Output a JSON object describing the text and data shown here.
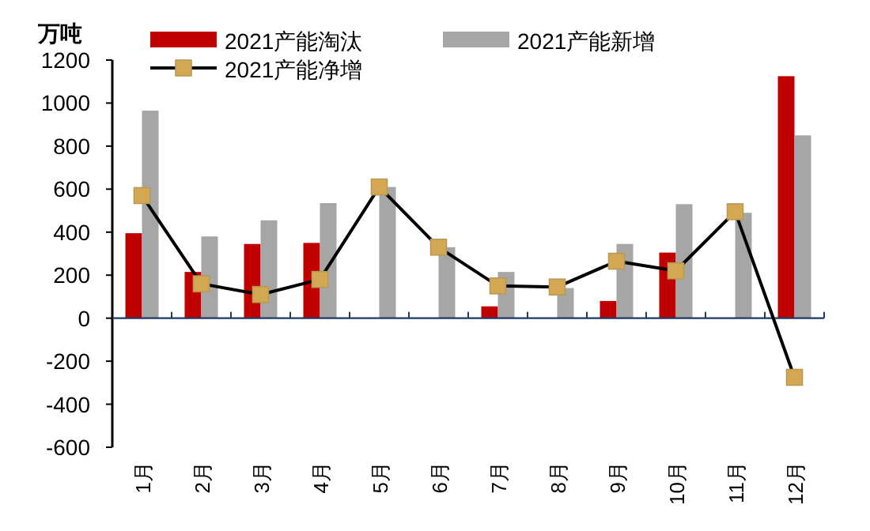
{
  "chart_data": {
    "type": "bar",
    "ylabel": "万吨",
    "categories": [
      "1月",
      "2月",
      "3月",
      "4月",
      "5月",
      "6月",
      "7月",
      "8月",
      "9月",
      "10月",
      "11月",
      "12月"
    ],
    "series": [
      {
        "name": "2021产能淘汰",
        "color": "#c00000",
        "values": [
          395,
          215,
          345,
          350,
          null,
          null,
          55,
          null,
          80,
          305,
          null,
          1125
        ]
      },
      {
        "name": "2021产能新增",
        "color": "#a6a6a6",
        "values": [
          965,
          380,
          455,
          535,
          610,
          330,
          215,
          140,
          345,
          530,
          490,
          850
        ]
      },
      {
        "name": "2021产能净增",
        "type": "line",
        "color": "#000000",
        "marker": "square",
        "values": [
          570,
          160,
          110,
          180,
          610,
          330,
          150,
          145,
          265,
          220,
          495,
          -275
        ]
      }
    ],
    "ylim": [
      -600,
      1200
    ],
    "yticks": [
      -600,
      -400,
      -200,
      0,
      200,
      400,
      600,
      800,
      1000,
      1200
    ],
    "grid": false,
    "legend": "top",
    "ref_lines": [
      {
        "axis": "y",
        "value": 0,
        "color": "#1f3864"
      }
    ]
  }
}
